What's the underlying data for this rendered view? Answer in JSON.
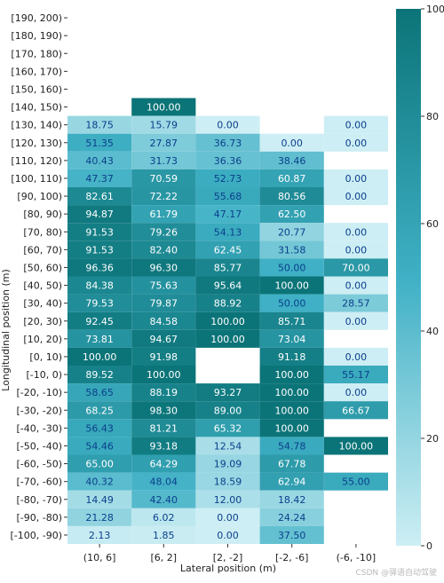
{
  "chart_data": {
    "type": "heatmap",
    "title": "",
    "xlabel": "Lateral position (m)",
    "ylabel": "Longitudinal position (m)",
    "x_categories": [
      "(10, 6]",
      "[6, 2]",
      "[2, -2]",
      "[-2, -6]",
      "(-6, -10]"
    ],
    "y_categories": [
      "[190, 200)",
      "[180, 190)",
      "[170, 180)",
      "[160, 170)",
      "[150, 160)",
      "[140, 150)",
      "[130, 140)",
      "[120, 130)",
      "[110, 120)",
      "[100, 110)",
      "[90, 100)",
      "[80, 90)",
      "[70, 80)",
      "[60, 70)",
      "[50, 60)",
      "[40, 50)",
      "[30, 40)",
      "[20, 30)",
      "[10, 20)",
      "[0, 10)",
      "[-10, 0)",
      "[-20, -10)",
      "[-30, -20)",
      "[-40, -30)",
      "[-50, -40)",
      "[-60, -50)",
      "[-70, -60)",
      "[-80, -70)",
      "[-90, -80)",
      "[-100, -90)"
    ],
    "values": [
      [
        null,
        null,
        null,
        null,
        null
      ],
      [
        null,
        null,
        null,
        null,
        null
      ],
      [
        null,
        null,
        null,
        null,
        null
      ],
      [
        null,
        null,
        null,
        null,
        null
      ],
      [
        null,
        null,
        null,
        null,
        null
      ],
      [
        null,
        100.0,
        null,
        null,
        null
      ],
      [
        18.75,
        15.79,
        0.0,
        null,
        0.0
      ],
      [
        51.35,
        27.87,
        36.73,
        0.0,
        0.0
      ],
      [
        40.43,
        31.73,
        36.36,
        38.46,
        null
      ],
      [
        47.37,
        70.59,
        52.73,
        60.87,
        0.0
      ],
      [
        82.61,
        72.22,
        55.68,
        80.56,
        0.0
      ],
      [
        94.87,
        61.79,
        47.17,
        62.5,
        null
      ],
      [
        91.53,
        79.26,
        54.13,
        20.77,
        0.0
      ],
      [
        91.53,
        82.4,
        62.45,
        31.58,
        0.0
      ],
      [
        96.36,
        96.3,
        85.77,
        50.0,
        70.0
      ],
      [
        84.38,
        75.63,
        95.64,
        100.0,
        0.0
      ],
      [
        79.53,
        79.87,
        88.92,
        50.0,
        28.57
      ],
      [
        92.45,
        84.58,
        100.0,
        85.71,
        0.0
      ],
      [
        73.81,
        94.67,
        100.0,
        73.04,
        null
      ],
      [
        100.0,
        91.98,
        null,
        91.18,
        0.0
      ],
      [
        89.52,
        100.0,
        null,
        100.0,
        55.17
      ],
      [
        58.65,
        88.19,
        93.27,
        100.0,
        0.0
      ],
      [
        68.25,
        98.3,
        89.0,
        100.0,
        66.67
      ],
      [
        56.43,
        81.21,
        65.32,
        100.0,
        null
      ],
      [
        54.46,
        93.18,
        12.54,
        54.78,
        100.0
      ],
      [
        65.0,
        64.29,
        19.09,
        67.78,
        null
      ],
      [
        40.32,
        48.04,
        18.59,
        62.94,
        55.0
      ],
      [
        14.49,
        42.4,
        12.0,
        18.42,
        null
      ],
      [
        21.28,
        6.02,
        0.0,
        24.24,
        null
      ],
      [
        2.13,
        1.85,
        0.0,
        37.5,
        null
      ]
    ],
    "value_labels": [
      [
        null,
        null,
        null,
        null,
        null
      ],
      [
        null,
        null,
        null,
        null,
        null
      ],
      [
        null,
        null,
        null,
        null,
        null
      ],
      [
        null,
        null,
        null,
        null,
        null
      ],
      [
        null,
        null,
        null,
        null,
        null
      ],
      [
        null,
        "100.00",
        null,
        null,
        null
      ],
      [
        "18.75",
        "15.79",
        "0.00",
        null,
        "0.00"
      ],
      [
        "51.35",
        "27.87",
        "36.73",
        "0.00",
        "0.00"
      ],
      [
        "40.43",
        "31.73",
        "36.36",
        "38.46",
        null
      ],
      [
        "47.37",
        "70.59",
        "52.73",
        "60.87",
        "0.00"
      ],
      [
        "82.61",
        "72.22",
        "55.68",
        "80.56",
        "0.00"
      ],
      [
        "94.87",
        "61.79",
        "47.17",
        "62.50",
        null
      ],
      [
        "91.53",
        "79.26",
        "54.13",
        "20.77",
        "0.00"
      ],
      [
        "91.53",
        "82.40",
        "62.45",
        "31.58",
        "0.00"
      ],
      [
        "96.36",
        "96.30",
        "85.77",
        "50.00",
        "70.00"
      ],
      [
        "84.38",
        "75.63",
        "95.64",
        "100.00",
        "0.00"
      ],
      [
        "79.53",
        "79.87",
        "88.92",
        "50.00",
        "28.57"
      ],
      [
        "92.45",
        "84.58",
        "100.00",
        "85.71",
        "0.00"
      ],
      [
        "73.81",
        "94.67",
        "100.00",
        "73.04",
        null
      ],
      [
        "100.00",
        "91.98",
        null,
        "91.18",
        "0.00"
      ],
      [
        "89.52",
        "100.00",
        null,
        "100.00",
        "55.17"
      ],
      [
        "58.65",
        "88.19",
        "93.27",
        "100.00",
        "0.00"
      ],
      [
        "68.25",
        "98.30",
        "89.00",
        "100.00",
        "66.67"
      ],
      [
        "56.43",
        "81.21",
        "65.32",
        "100.00",
        null
      ],
      [
        "54.46",
        "93.18",
        "12.54",
        "54.78",
        "100.00"
      ],
      [
        "65.00",
        "64.29",
        "19.09",
        "67.78",
        null
      ],
      [
        "40.32",
        "48.04",
        "18.59",
        "62.94",
        "55.00"
      ],
      [
        "14.49",
        "42.40",
        "12.00",
        "18.42",
        null
      ],
      [
        "21.28",
        "6.02",
        "0.00",
        "24.24",
        null
      ],
      [
        "2.13",
        "1.85",
        "0.00",
        "37.50",
        null
      ]
    ],
    "colorbar": {
      "min": 0,
      "max": 100,
      "ticks": [
        0,
        20,
        40,
        60,
        80,
        100
      ],
      "tick_labels": [
        "0",
        "20",
        "40",
        "60",
        "80",
        "100"
      ],
      "color_low": "#cdeef4",
      "color_mid": "#3fb0c5",
      "color_high": "#0b7478"
    },
    "label_color_dark_text": "#0b3f8c",
    "label_color_light_text": "#ffffff",
    "grid": false,
    "legend": "colorbar-right"
  },
  "watermark": "CSDN @驿语自动驾驶"
}
